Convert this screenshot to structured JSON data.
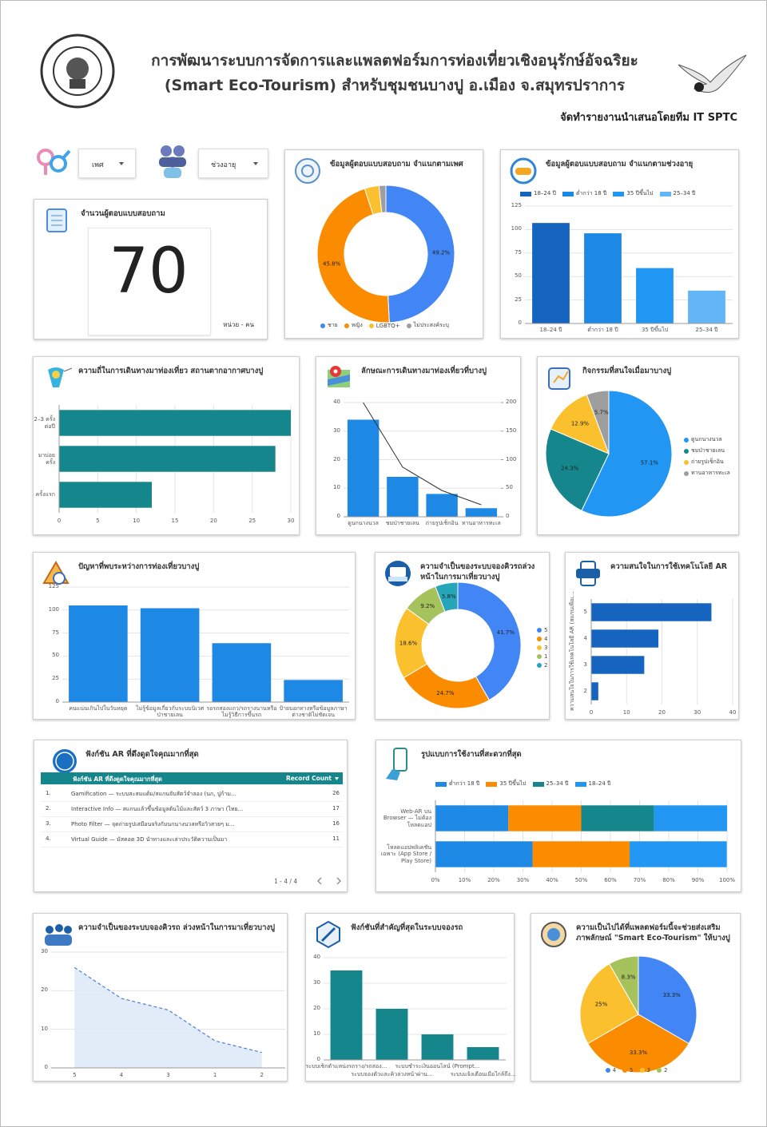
{
  "header": {
    "title_lines": [
      "การพัฒนาระบบการจัดการและแพลตฟอร์มการท่องเที่ยวเชิงอนุรักษ์อัจฉริยะ",
      "(Smart Eco-Tourism) สำหรับชุมชนบางปู อ.เมือง จ.สมุทรปราการ"
    ],
    "credit": "จัดทำรายงานนำเสนอโดยทีม IT SPTC"
  },
  "filters": [
    "เพศ",
    "ช่วงอายุ"
  ],
  "scorecard": {
    "title": "จำนวนผู้ตอบแบบสอบถาม",
    "value": 70,
    "unit": "หน่วย - คน"
  },
  "table": {
    "title": "ฟังก์ชัน AR ที่ดึงดูดใจคุณมากที่สุด",
    "columns": [
      "ฟังก์ชัน AR ที่ดึงดูดใจคุณมากที่สุด",
      "Record Count"
    ],
    "rows": [
      [
        "1.",
        "Gamification — ระบบสะสมแต้ม/สแกนจับสัตว์จำลอง (นก, ปูก้าม...",
        26
      ],
      [
        "2.",
        "Interactive Info — สแกนแล้วขึ้นข้อมูลต้นไม้และสัตว์ 3 ภาษา (ไทย...",
        17
      ],
      [
        "3.",
        "Photo Filter — จุดถ่ายรูปเสมือนจริงกับนกนางนวลหรือวิวสวยๆ ม...",
        16
      ],
      [
        "4.",
        "Virtual Guide — มัสคอต 3D นำทางและเล่าประวัติความเป็นมา",
        11
      ]
    ],
    "pagination": "1 - 4 / 4"
  },
  "chart_data": [
    {
      "type": "pie",
      "title": "ข้อมูลผู้ตอบแบบสอบถาม จำแนกตามเพศ",
      "categories": [
        "ชาย",
        "หญิง",
        "LGBTQ+",
        "ไม่ประสงค์ระบุ"
      ],
      "values": [
        49.2,
        45.8,
        3.4,
        1.6
      ],
      "value_labels": [
        "49.2%",
        "45.8%",
        null,
        null
      ],
      "colors": [
        "#4285f4",
        "#fb8c00",
        "#fbc02d",
        "#9e9e9e"
      ]
    },
    {
      "type": "bar",
      "title": "ข้อมูลผู้ตอบแบบสอบถาม จำแนกตามช่วงอายุ",
      "categories": [
        "18–24 ปี",
        "ต่ำกว่า 18 ปี",
        "35 ปีขึ้นไป",
        "25–34 ปี"
      ],
      "values": [
        107,
        96,
        59,
        35
      ],
      "colors": [
        "#1565c0",
        "#1e88e5",
        "#2196f3",
        "#64b5f6"
      ],
      "ylim": [
        0,
        125
      ],
      "yticks": [
        0,
        25,
        50,
        75,
        100,
        125
      ],
      "grid": true,
      "legend": true
    },
    {
      "type": "hbar",
      "title": "ความถี่ในการเดินทางมาท่องเที่ยว สถานตากอากาศบางปู",
      "categories": [
        "2–3 ครั้งต่อปี",
        "มาบ่อยครั้ง",
        "ครั้งแรก"
      ],
      "values": [
        30,
        28,
        12
      ],
      "color": "#15878c",
      "xlim": [
        0,
        30
      ],
      "xticks": [
        0,
        5,
        10,
        15,
        20,
        25,
        30
      ],
      "grid": true
    },
    {
      "type": "bar",
      "title": "ลักษณะการเดินทางมาท่องเที่ยวที่บางปู",
      "categories": [
        "ดูนกนางนวล",
        "ชมป่าชายเลน",
        "ถ่ายรูปเช็กอิน",
        "ทานอาหารทะเล"
      ],
      "values": [
        34,
        14,
        8,
        3
      ],
      "color": "#1e88e5",
      "ylim": [
        0,
        40
      ],
      "yticks": [
        0,
        10,
        20,
        30,
        40
      ],
      "y2lim": [
        0,
        200
      ],
      "y2ticks": [
        0,
        50,
        100,
        150,
        200
      ],
      "grid": true,
      "line": {
        "values": [
          200,
          87,
          46,
          21
        ],
        "color": "#333333",
        "axis": "y2"
      }
    },
    {
      "type": "pie",
      "title": "กิจกรรมที่สนใจเมื่อมาบางปู",
      "categories": [
        "ดูนกนางนวล",
        "ชมป่าชายเลน",
        "ถ่ายรูปเช็กอิน",
        "ทานอาหารทะเล"
      ],
      "values": [
        57.1,
        24.3,
        12.9,
        5.7
      ],
      "value_labels": [
        "57.1%",
        "24.3%",
        "12.9%",
        "5.7%"
      ],
      "colors": [
        "#2196f3",
        "#14868c",
        "#fbc02d",
        "#9e9e9e"
      ]
    },
    {
      "type": "bar",
      "title": "ปัญหาที่พบระหว่างการท่องเที่ยวบางปู",
      "categories": [
        "คนแน่นเกินไปในวันหยุด",
        "ไม่รู้ข้อมูลเกี่ยวกับระบบนิเวศป่าชายเลน",
        "รอรถสองแถว/รถรางนานหรือไม่รู้วิธีการขึ้นรถ",
        "ป้ายบอกทางหรือข้อมูลภาษาต่างชาติไม่ชัดเจน"
      ],
      "values": [
        105,
        102,
        64,
        24
      ],
      "color": "#1e88e5",
      "ylim": [
        0,
        125
      ],
      "yticks": [
        0,
        25,
        50,
        75,
        100,
        125
      ],
      "grid": true
    },
    {
      "type": "pie",
      "title": "ความจำเป็นของระบบจองคิวรถล่วงหน้าในการมาเที่ยวบางปู",
      "categories": [
        "5",
        "4",
        "3",
        "1",
        "2"
      ],
      "values": [
        41.7,
        24.7,
        18.6,
        9.2,
        5.8
      ],
      "value_labels": [
        "41.7%",
        "24.7%",
        "18.6%",
        "9.2%",
        "5.8%"
      ],
      "colors": [
        "#4285f4",
        "#fb8c00",
        "#fbc02d",
        "#a5c25c",
        "#26a6b8"
      ]
    },
    {
      "type": "hbar",
      "title": "ความสนใจในการใช้เทคโนโลยี AR",
      "ylabel": "ความสนใจในการใช้เทคโนโลยี AR (สแกนเพื่อเห็นภาพ/ฟังข้อมูล) ใน...",
      "categories": [
        "5",
        "4",
        "3",
        "2"
      ],
      "values": [
        34,
        19,
        15,
        2
      ],
      "color": "#1565c0",
      "xlim": [
        0,
        40
      ],
      "xticks": [
        0,
        10,
        20,
        30,
        40
      ],
      "grid": true
    },
    {
      "type": "hbar",
      "title": "รูปแบบการใช้งานที่สะดวกที่สุด",
      "stacked": true,
      "categories": [
        "Web-AR บน Browser — ไม่ต้องโหลดแอป",
        "โหลดแอปพลิเคชันเฉพาะ (App Store / Play Store)"
      ],
      "series": [
        {
          "name": "ต่ำกว่า 18 ปี",
          "color": "#1e88e5",
          "values": [
            25,
            33.3
          ]
        },
        {
          "name": "35 ปีขึ้นไป",
          "color": "#fb8c00",
          "values": [
            25,
            33.3
          ]
        },
        {
          "name": "25–34 ปี",
          "color": "#14868c",
          "values": [
            25,
            0
          ]
        },
        {
          "name": "18–24 ปี",
          "color": "#2196f3",
          "values": [
            25,
            33.3
          ]
        }
      ],
      "xlim": [
        0,
        100
      ],
      "xticks": [
        {
          "value": 0,
          "label": "0%"
        },
        {
          "value": 10,
          "label": "10%"
        },
        {
          "value": 20,
          "label": "20%"
        },
        {
          "value": 30,
          "label": "30%"
        },
        {
          "value": 40,
          "label": "40%"
        },
        {
          "value": 50,
          "label": "50%"
        },
        {
          "value": 60,
          "label": "60%"
        },
        {
          "value": 70,
          "label": "70%"
        },
        {
          "value": 80,
          "label": "80%"
        },
        {
          "value": 90,
          "label": "90%"
        },
        {
          "value": 100,
          "label": "100%"
        }
      ],
      "grid": true
    },
    {
      "type": "line",
      "title": "ความจำเป็นของระบบจองคิวรถ ล่วงหน้าในการมาเที่ยวบางปู",
      "categories": [
        "5",
        "4",
        "3",
        "1",
        "2"
      ],
      "values": [
        26,
        18,
        15,
        7,
        4
      ],
      "color": "#4a7fd4",
      "fill": "#dbe7f8",
      "ylim": [
        0,
        30
      ],
      "yticks": [
        0,
        10,
        20,
        30
      ],
      "grid": true
    },
    {
      "type": "bar",
      "title": "ฟังก์ชันที่สำคัญที่สุดในระบบจองรถ",
      "categories": [
        "ระบบเช็กตำแหน่งรถราง/รถสอง...",
        "ระบบจองตั๋วและคิวล่วงหน้าผ่าน...",
        "ระบบชำระเงินออนไลน์ (Prompt...",
        "ระบบแจ้งเตือนเมื่อใกล้ถึง..."
      ],
      "values": [
        35,
        20,
        10,
        5
      ],
      "color": "#15878c",
      "ylim": [
        0,
        40
      ],
      "yticks": [
        0,
        10,
        20,
        30,
        40
      ],
      "grid": true
    },
    {
      "type": "pie",
      "title": "ความเป็นไปได้ที่แพลตฟอร์มนี้จะช่วยส่งเสริมภาพลักษณ์ \"Smart Eco-Tourism\" ให้บางปู",
      "categories": [
        "4",
        "5",
        "3",
        "2"
      ],
      "values": [
        33.3,
        33.3,
        25,
        8.3
      ],
      "value_labels": [
        "33.3%",
        "33.3%",
        "25%",
        "8.3%"
      ],
      "colors": [
        "#4285f4",
        "#fb8c00",
        "#fbc02d",
        "#a5c25c"
      ]
    }
  ]
}
